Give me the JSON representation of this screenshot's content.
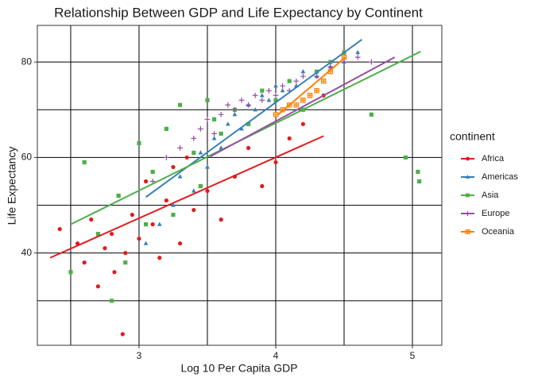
{
  "chart_data": {
    "type": "scatter",
    "title": "Relationship Between GDP and Life Expectancy by Continent",
    "x_label": "Log 10 Per Capita GDP",
    "y_label": "Life Expectancy",
    "legend_title": "continent",
    "xlim": [
      2.256,
      5.215
    ],
    "ylim": [
      20.67,
      87.67
    ],
    "xticks": [
      3,
      4,
      5
    ],
    "yticks": [
      40,
      60,
      80
    ],
    "xminor": [
      2.5,
      3.5,
      4.5
    ],
    "yminor": [
      30,
      50,
      70
    ],
    "grid": true,
    "series": [
      {
        "name": "Africa",
        "color": "#E41A1C",
        "shape": "circle",
        "x": [
          2.42,
          2.55,
          2.6,
          2.65,
          2.7,
          2.75,
          2.8,
          2.82,
          2.85,
          2.88,
          2.9,
          2.95,
          3.0,
          3.05,
          3.1,
          3.15,
          3.2,
          3.25,
          3.3,
          3.35,
          3.4,
          3.5,
          3.6,
          3.7,
          3.8,
          3.9,
          4.0,
          4.1,
          4.2,
          4.35
        ],
        "values": [
          45,
          42,
          38,
          47,
          33,
          41,
          44,
          36,
          52,
          23,
          40,
          48,
          43,
          55,
          46,
          39,
          51,
          58,
          42,
          60,
          49,
          53,
          47,
          56,
          62,
          54,
          59,
          64,
          67,
          73
        ],
        "trend": {
          "x": [
            2.35,
            4.35
          ],
          "y": [
            39,
            64.5
          ]
        }
      },
      {
        "name": "Americas",
        "color": "#377EB8",
        "shape": "triangle",
        "x": [
          3.05,
          3.15,
          3.25,
          3.3,
          3.4,
          3.45,
          3.5,
          3.55,
          3.6,
          3.65,
          3.7,
          3.75,
          3.8,
          3.85,
          3.9,
          3.95,
          4.0,
          4.05,
          4.1,
          4.15,
          4.2,
          4.3,
          4.4,
          4.5,
          4.6
        ],
        "values": [
          42,
          46,
          50,
          56,
          53,
          61,
          58,
          64,
          62,
          67,
          69,
          66,
          71,
          70,
          73,
          72,
          75,
          74,
          76,
          75,
          78,
          77,
          79,
          80,
          82
        ],
        "trend": {
          "x": [
            3.05,
            4.63
          ],
          "y": [
            51.7,
            84.7
          ]
        }
      },
      {
        "name": "Asia",
        "color": "#4DAF4A",
        "shape": "square",
        "x": [
          2.5,
          2.6,
          2.7,
          2.8,
          2.85,
          2.9,
          3.0,
          3.05,
          3.1,
          3.2,
          3.25,
          3.3,
          3.4,
          3.45,
          3.5,
          3.55,
          3.6,
          3.7,
          3.8,
          3.9,
          4.0,
          4.1,
          4.2,
          4.3,
          4.4,
          4.5,
          4.7,
          4.95,
          5.04,
          5.05
        ],
        "values": [
          36,
          59,
          44,
          30,
          52,
          38,
          63,
          46,
          57,
          66,
          48,
          71,
          61,
          54,
          72,
          68,
          65,
          70,
          67,
          74,
          72,
          76,
          70,
          78,
          80,
          82,
          69,
          60,
          57,
          55
        ],
        "trend": {
          "x": [
            2.5,
            5.06
          ],
          "y": [
            46,
            82.2
          ]
        }
      },
      {
        "name": "Europe",
        "color": "#984EA3",
        "shape": "plus",
        "x": [
          3.1,
          3.2,
          3.3,
          3.4,
          3.45,
          3.5,
          3.55,
          3.6,
          3.65,
          3.7,
          3.75,
          3.8,
          3.85,
          3.9,
          3.95,
          4.0,
          4.05,
          4.1,
          4.15,
          4.2,
          4.3,
          4.4,
          4.5,
          4.6,
          4.7
        ],
        "values": [
          55,
          60,
          62,
          64,
          66,
          68,
          65,
          69,
          71,
          70,
          72,
          71,
          73,
          72,
          74,
          73,
          75,
          74,
          76,
          77,
          77,
          79,
          80,
          81,
          80
        ],
        "trend": {
          "x": [
            3.52,
            4.87
          ],
          "y": [
            60.2,
            81
          ]
        }
      },
      {
        "name": "Oceania",
        "color": "#FF7F00",
        "shape": "square-cross",
        "x": [
          4.0,
          4.05,
          4.1,
          4.15,
          4.2,
          4.25,
          4.3,
          4.35,
          4.4,
          4.5
        ],
        "values": [
          69,
          70,
          71,
          71,
          72,
          73,
          74,
          76,
          78,
          81
        ],
        "trend": {
          "x": [
            4.01,
            4.51
          ],
          "y": [
            68.8,
            81
          ]
        }
      }
    ]
  }
}
